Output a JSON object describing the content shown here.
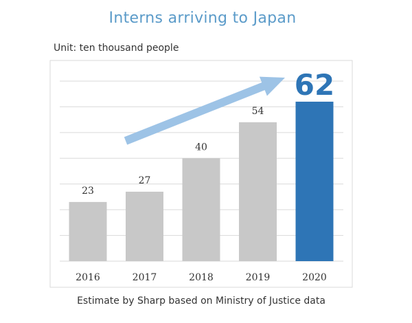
{
  "title": "Interns arriving to Japan",
  "unit_label": "Unit: ten thousand people",
  "footer": "Estimate by Sharp based on Ministry of Justice data",
  "colors": {
    "title": "#5b9bc9",
    "bar": "#c8c8c8",
    "highlight_bar": "#2e75b6",
    "arrow": "#9dc3e6",
    "grid": "#d9d9d9"
  },
  "chart_data": {
    "type": "bar",
    "categories": [
      "2016",
      "2017",
      "2018",
      "2019",
      "2020"
    ],
    "values": [
      23,
      27,
      40,
      54,
      62
    ],
    "highlight_index": 4,
    "title": "Interns arriving to Japan",
    "ylabel": "",
    "xlabel": "",
    "ylim": [
      0,
      70
    ],
    "grid": true,
    "annotation": "upward-arrow"
  }
}
